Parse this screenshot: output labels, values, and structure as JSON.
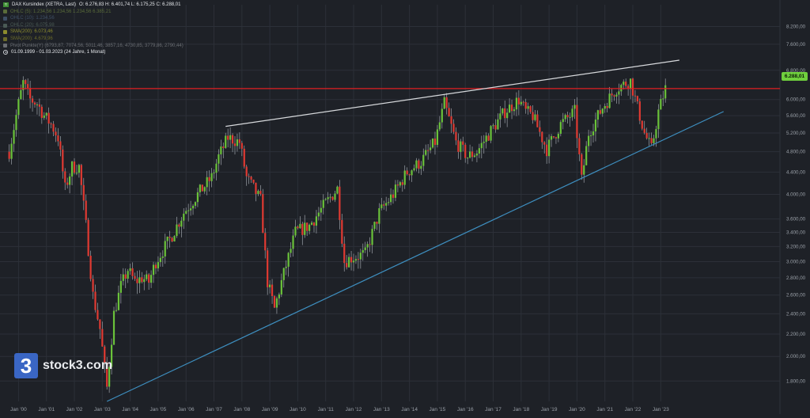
{
  "header": {
    "title": "DAX Kursindex (XETRA, Last)",
    "ohlc": "O: 6.276,83  H: 6.401,74  L: 6.175,25  C: 6.288,01",
    "indicators": [
      {
        "label": "OHLC (5): 1.234,56  1.234,56  1.234,56  6.385,21",
        "color": "#5a6c3a"
      },
      {
        "label": "OHLC (10): 1.234,56",
        "color": "#3e4f66"
      },
      {
        "label": "OHLC (20): 6.075,98",
        "color": "#4a5a55"
      },
      {
        "label": "SMA(200): 6.073,46",
        "color": "#8c8c2e"
      },
      {
        "label": "SMA(200): 4.679,96",
        "color": "#6b6b2a"
      },
      {
        "label": "Pivot Punkte(Y)  (6793,87,  7074,56,  5011,46,  3857,16,  4730,85,  3779,86,  2790,44)",
        "color": "#6a6d72"
      }
    ],
    "range": "01.09.1999 - 01.03.2023  (24 Jahre, 1 Monat)"
  },
  "logo": {
    "mark": "3",
    "text": "stock3.com"
  },
  "price_tag": "6.288,01",
  "colors": {
    "up": "#6ac23a",
    "down": "#e03a32",
    "resistance": "#e01f22",
    "support_trend": "#3e8fc0",
    "upper_trend": "#d7d9dc",
    "grid": "#2c3038"
  },
  "chart_data": {
    "type": "candlestick",
    "title": "DAX Kursindex (XETRA, Last)",
    "x_axis": {
      "range": [
        "1999-09",
        "2023-03"
      ],
      "tick_labels": [
        "Jan '00",
        "Jan '01",
        "Jan '02",
        "Jan '03",
        "Jan '04",
        "Jan '05",
        "Jan '06",
        "Jan '07",
        "Jan '08",
        "Jan '09",
        "Jan '10",
        "Jan '11",
        "Jan '12",
        "Jan '13",
        "Jan '14",
        "Jan '15",
        "Jan '16",
        "Jan '17",
        "Jan '18",
        "Jan '19",
        "Jan '20",
        "Jan '21",
        "Jan '22",
        "Jan '23"
      ]
    },
    "y_axis": {
      "scale": "log",
      "range": [
        1650,
        9000
      ],
      "tick_values": [
        1800,
        2000,
        2200,
        2400,
        2600,
        2800,
        3000,
        3200,
        3400,
        3600,
        4000,
        4400,
        4800,
        5200,
        5600,
        6000,
        6800,
        7600,
        8200
      ],
      "tick_labels": [
        "1.800,00",
        "2.000,00",
        "2.200,00",
        "2.400,00",
        "2.600,00",
        "2.800,00",
        "3.000,00",
        "3.200,00",
        "3.400,00",
        "3.600,00",
        "4.000,00",
        "4.400,00",
        "4.800,00",
        "5.200,00",
        "5.600,00",
        "6.000,00",
        "6.800,00",
        "7.600,00",
        "8.200,00"
      ]
    },
    "grid": true,
    "close_series": [
      [
        "1999-09",
        4800
      ],
      [
        "2000-01",
        5900
      ],
      [
        "2000-03",
        6450
      ],
      [
        "2000-06",
        6000
      ],
      [
        "2000-09",
        5900
      ],
      [
        "2000-12",
        5600
      ],
      [
        "2001-03",
        5400
      ],
      [
        "2001-06",
        5100
      ],
      [
        "2001-09",
        4100
      ],
      [
        "2001-12",
        4500
      ],
      [
        "2002-03",
        4500
      ],
      [
        "2002-06",
        3500
      ],
      [
        "2002-09",
        2600
      ],
      [
        "2002-12",
        2250
      ],
      [
        "2003-03",
        1750
      ],
      [
        "2003-06",
        2400
      ],
      [
        "2003-09",
        2700
      ],
      [
        "2003-12",
        2900
      ],
      [
        "2004-03",
        2750
      ],
      [
        "2004-06",
        2800
      ],
      [
        "2004-09",
        2750
      ],
      [
        "2004-12",
        3000
      ],
      [
        "2005-06",
        3300
      ],
      [
        "2005-12",
        3700
      ],
      [
        "2006-06",
        4000
      ],
      [
        "2006-12",
        4300
      ],
      [
        "2007-03",
        4700
      ],
      [
        "2007-07",
        5100
      ],
      [
        "2007-12",
        5000
      ],
      [
        "2008-03",
        4300
      ],
      [
        "2008-06",
        4100
      ],
      [
        "2008-09",
        3900
      ],
      [
        "2008-12",
        2750
      ],
      [
        "2009-03",
        2450
      ],
      [
        "2009-06",
        2750
      ],
      [
        "2009-12",
        3400
      ],
      [
        "2010-06",
        3500
      ],
      [
        "2010-12",
        3800
      ],
      [
        "2011-06",
        4100
      ],
      [
        "2011-09",
        3000
      ],
      [
        "2011-12",
        3050
      ],
      [
        "2012-06",
        3100
      ],
      [
        "2012-12",
        3700
      ],
      [
        "2013-06",
        4000
      ],
      [
        "2013-12",
        4400
      ],
      [
        "2014-06",
        4600
      ],
      [
        "2014-12",
        5000
      ],
      [
        "2015-04",
        5900
      ],
      [
        "2015-09",
        5000
      ],
      [
        "2016-02",
        4700
      ],
      [
        "2016-06",
        4800
      ],
      [
        "2016-12",
        5250
      ],
      [
        "2017-06",
        5700
      ],
      [
        "2017-12",
        6000
      ],
      [
        "2018-03",
        5700
      ],
      [
        "2018-06",
        5600
      ],
      [
        "2018-12",
        4850
      ],
      [
        "2019-06",
        5400
      ],
      [
        "2019-12",
        5700
      ],
      [
        "2020-03",
        4250
      ],
      [
        "2020-06",
        5200
      ],
      [
        "2020-12",
        5800
      ],
      [
        "2021-06",
        6300
      ],
      [
        "2021-12",
        6500
      ],
      [
        "2022-03",
        5800
      ],
      [
        "2022-06",
        5200
      ],
      [
        "2022-09",
        4850
      ],
      [
        "2022-12",
        5700
      ],
      [
        "2023-03",
        6288
      ]
    ],
    "horizontal_lines": [
      {
        "value": 6288.01,
        "label": "6.288,01"
      }
    ],
    "trendlines": [
      {
        "name": "upper",
        "from": [
          "2007-06",
          5350
        ],
        "to": [
          "2023-09",
          7100
        ]
      },
      {
        "name": "lower",
        "from": [
          "2003-03",
          1650
        ],
        "to": [
          "2025-04",
          5700
        ]
      }
    ]
  }
}
